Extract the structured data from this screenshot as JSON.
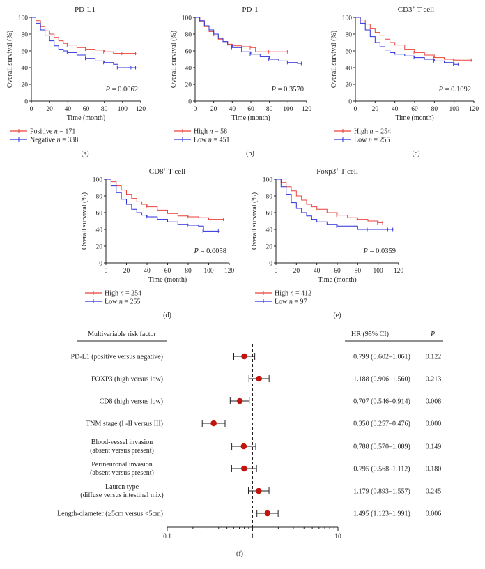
{
  "colors": {
    "red": "#e8423a",
    "blue": "#2b2fd9",
    "marker": "#c1140f",
    "ink": "#231f20"
  },
  "km_common": {
    "x_ticks": [
      0,
      20,
      40,
      60,
      80,
      100,
      120
    ],
    "y_ticks": [
      0,
      20,
      40,
      60,
      80,
      100
    ],
    "xlim": [
      0,
      120
    ],
    "ylim": [
      0,
      100
    ],
    "xlabel": "Time (month)",
    "ylabel": "Overall survival (%)",
    "line_glyph": "—+—"
  },
  "chart_data": [
    {
      "type": "line",
      "panel_label": "(a)",
      "title": "PD-L1",
      "p_label": "P",
      "p_value": "= 0.0062",
      "series": [
        {
          "name": "Positive",
          "n_label": "n",
          "n": "= 171",
          "color": "red",
          "x": [
            0,
            5,
            10,
            15,
            20,
            25,
            30,
            35,
            40,
            50,
            60,
            70,
            80,
            90,
            100,
            110,
            115
          ],
          "y": [
            100,
            96,
            89,
            84,
            80,
            76,
            72,
            69,
            67,
            64,
            62,
            61,
            59,
            57,
            57,
            57,
            57
          ]
        },
        {
          "name": "Negative",
          "n_label": "n",
          "n": "= 338",
          "color": "blue",
          "x": [
            0,
            5,
            10,
            15,
            20,
            25,
            30,
            35,
            40,
            50,
            60,
            70,
            80,
            90,
            95,
            100,
            110,
            115
          ],
          "y": [
            100,
            93,
            85,
            78,
            72,
            66,
            62,
            60,
            58,
            55,
            51,
            48,
            46,
            44,
            40,
            40,
            40,
            40
          ]
        }
      ]
    },
    {
      "type": "line",
      "panel_label": "(b)",
      "title": "PD-1",
      "p_label": "P",
      "p_value": "= 0.3570",
      "series": [
        {
          "name": "High",
          "n_label": "n",
          "n": "= 58",
          "color": "red",
          "x": [
            0,
            5,
            10,
            15,
            20,
            25,
            30,
            35,
            40,
            50,
            60,
            65,
            80,
            90,
            100
          ],
          "y": [
            100,
            95,
            89,
            83,
            78,
            74,
            71,
            68,
            66,
            65,
            64,
            59,
            59,
            59,
            59
          ]
        },
        {
          "name": "Low",
          "n_label": "n",
          "n": "= 451",
          "color": "blue",
          "x": [
            0,
            5,
            10,
            15,
            20,
            25,
            30,
            35,
            40,
            50,
            60,
            70,
            80,
            90,
            100,
            110,
            115
          ],
          "y": [
            100,
            96,
            90,
            85,
            80,
            75,
            71,
            67,
            64,
            59,
            56,
            53,
            50,
            48,
            46,
            45,
            45
          ]
        }
      ]
    },
    {
      "type": "line",
      "panel_label": "(c)",
      "title": "CD3",
      "title_sup": "+",
      "title_suffix": " T cell",
      "p_label": "P",
      "p_value": "= 0.1092",
      "series": [
        {
          "name": "High",
          "n_label": "n",
          "n": "= 254",
          "color": "red",
          "x": [
            0,
            5,
            10,
            15,
            20,
            25,
            30,
            35,
            40,
            50,
            60,
            70,
            80,
            90,
            100,
            110,
            118
          ],
          "y": [
            100,
            97,
            92,
            87,
            82,
            78,
            74,
            70,
            67,
            62,
            58,
            55,
            52,
            50,
            49,
            49,
            49
          ]
        },
        {
          "name": "Low",
          "n_label": "n",
          "n": "= 255",
          "color": "blue",
          "x": [
            0,
            5,
            10,
            15,
            20,
            25,
            30,
            35,
            40,
            50,
            60,
            70,
            80,
            90,
            100,
            105
          ],
          "y": [
            100,
            93,
            85,
            77,
            70,
            65,
            61,
            58,
            56,
            54,
            52,
            50,
            48,
            46,
            44,
            44
          ]
        }
      ]
    },
    {
      "type": "line",
      "panel_label": "(d)",
      "title": "CD8",
      "title_sup": "+",
      "title_suffix": " T cell",
      "p_label": "P",
      "p_value": "= 0.0058",
      "series": [
        {
          "name": "High",
          "n_label": "n",
          "n": "= 254",
          "color": "red",
          "x": [
            0,
            5,
            10,
            15,
            20,
            25,
            30,
            35,
            40,
            50,
            60,
            70,
            80,
            90,
            100,
            110,
            115
          ],
          "y": [
            100,
            97,
            92,
            87,
            82,
            77,
            73,
            70,
            67,
            63,
            59,
            56,
            55,
            54,
            52,
            52,
            52
          ]
        },
        {
          "name": "Low",
          "n_label": "n",
          "n": "= 255",
          "color": "blue",
          "x": [
            0,
            5,
            10,
            15,
            20,
            25,
            30,
            35,
            40,
            50,
            60,
            70,
            80,
            90,
            95,
            100,
            110
          ],
          "y": [
            100,
            92,
            84,
            76,
            70,
            64,
            60,
            57,
            55,
            52,
            49,
            46,
            45,
            44,
            38,
            38,
            38
          ]
        }
      ]
    },
    {
      "type": "line",
      "panel_label": "(e)",
      "title": "Foxp3",
      "title_sup": "+",
      "title_suffix": " T cell",
      "p_label": "P",
      "p_value": "= 0.0359",
      "series": [
        {
          "name": "High",
          "n_label": "n",
          "n": "= 412",
          "color": "red",
          "x": [
            0,
            5,
            10,
            15,
            20,
            25,
            30,
            35,
            40,
            50,
            60,
            70,
            80,
            90,
            100,
            105
          ],
          "y": [
            100,
            96,
            91,
            86,
            80,
            75,
            70,
            67,
            64,
            60,
            57,
            54,
            52,
            50,
            48,
            48
          ]
        },
        {
          "name": "Low",
          "n_label": "n",
          "n": "= 97",
          "color": "blue",
          "x": [
            0,
            5,
            10,
            15,
            20,
            25,
            30,
            35,
            40,
            50,
            60,
            70,
            78,
            80,
            90,
            100,
            110,
            115
          ],
          "y": [
            100,
            91,
            82,
            72,
            65,
            60,
            56,
            52,
            49,
            46,
            44,
            44,
            44,
            40,
            40,
            40,
            40,
            40
          ]
        }
      ]
    },
    {
      "type": "forest",
      "panel_label": "(f)",
      "factor_header": "Multivariable risk factor",
      "hr_header": "HR (95% CI)",
      "p_header": "P",
      "x_scale": "log",
      "xlim": [
        0.1,
        10
      ],
      "x_ticks": [
        0.1,
        1,
        10
      ],
      "x_tick_labels": [
        "0.1",
        "1",
        "10"
      ],
      "reference": 1,
      "rows": [
        {
          "label": [
            "PD-L1 (positive versus negative)"
          ],
          "hr": 0.799,
          "lo": 0.602,
          "hi": 1.061,
          "ci_text": "0.799 (0.602–1.061)",
          "p": "0.122"
        },
        {
          "label": [
            "FOXP3 (high versus low)"
          ],
          "hr": 1.188,
          "lo": 0.906,
          "hi": 1.56,
          "ci_text": "1.188 (0.906–1.560)",
          "p": "0.213"
        },
        {
          "label": [
            "CD8 (high versus low)"
          ],
          "hr": 0.707,
          "lo": 0.546,
          "hi": 0.914,
          "ci_text": "0.707 (0.546–0.914)",
          "p": "0.008"
        },
        {
          "label": [
            "TNM stage (I -II versus III)"
          ],
          "hr": 0.35,
          "lo": 0.257,
          "hi": 0.476,
          "ci_text": "0.350 (0.257–0.476)",
          "p": "0.000"
        },
        {
          "label": [
            "Blood-vessel invasion",
            "(absent versus present)"
          ],
          "hr": 0.788,
          "lo": 0.57,
          "hi": 1.089,
          "ci_text": "0.788 (0.570–1.089)",
          "p": "0.149"
        },
        {
          "label": [
            "Perineuronal invasion",
            "(absent versus present)"
          ],
          "hr": 0.795,
          "lo": 0.568,
          "hi": 1.112,
          "ci_text": "0.795 (0.568–1.112)",
          "p": "0.180"
        },
        {
          "label": [
            "Lauren type",
            "(diffuse versus intestinal mix)"
          ],
          "hr": 1.179,
          "lo": 0.893,
          "hi": 1.557,
          "ci_text": "1.179 (0.893–1.557)",
          "p": "0.245"
        },
        {
          "label": [
            "Length-diameter (≥5cm versus <5cm)"
          ],
          "hr": 1.495,
          "lo": 1.123,
          "hi": 1.991,
          "ci_text": "1.495 (1.123–1.991)",
          "p": "0.006"
        }
      ]
    }
  ]
}
